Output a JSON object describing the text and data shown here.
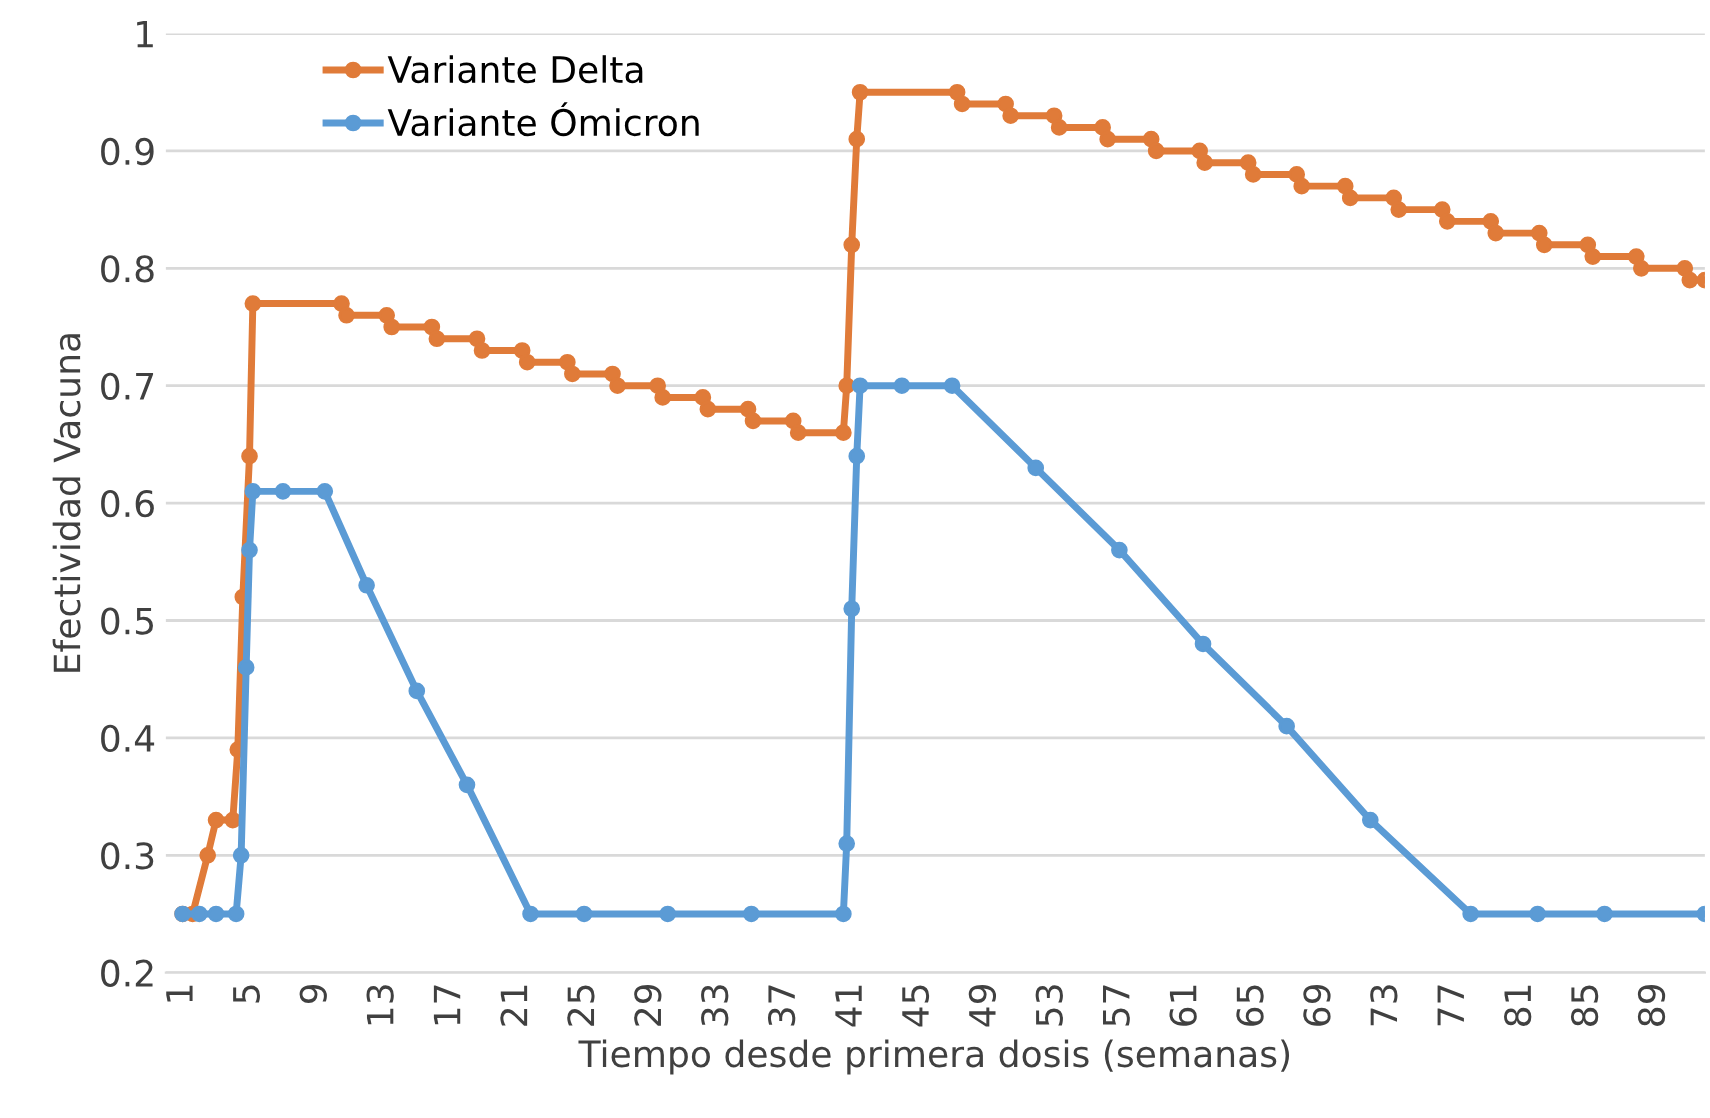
{
  "chart_data": {
    "type": "line",
    "xlabel": "Tiempo desde primera dosis (semanas)",
    "ylabel": "Efectividad Vacuna",
    "xlim": [
      0,
      92
    ],
    "xticks": [
      1,
      5,
      9,
      13,
      17,
      21,
      25,
      29,
      33,
      37,
      41,
      45,
      49,
      53,
      57,
      61,
      65,
      69,
      73,
      77,
      81,
      85,
      89
    ],
    "ylim": [
      0.2,
      1
    ],
    "yticks": [
      0.2,
      0.3,
      0.4,
      0.5,
      0.6,
      0.7,
      0.8,
      0.9,
      {
        "value": 1,
        "label": "1"
      }
    ],
    "grid": "y",
    "legend": "top left",
    "marker": "circle",
    "line_style": "solid",
    "series": [
      {
        "name": "Variante Delta",
        "color": "#e07b39",
        "x": [
          1,
          1.6,
          2.5,
          3,
          4,
          4.3,
          4.6,
          5.0,
          5.2,
          10.5,
          10.8,
          13.2,
          13.5,
          15.9,
          16.2,
          18.6,
          18.9,
          21.3,
          21.6,
          24.0,
          24.3,
          26.7,
          27.0,
          29.4,
          29.7,
          32.1,
          32.4,
          34.8,
          35.1,
          37.5,
          37.8,
          40.5,
          40.7,
          41.0,
          41.3,
          41.5,
          47.3,
          47.6,
          50.2,
          50.5,
          53.1,
          53.4,
          56.0,
          56.3,
          58.9,
          59.2,
          61.8,
          62.1,
          64.7,
          65.0,
          67.6,
          67.9,
          70.5,
          70.8,
          73.4,
          73.7,
          76.3,
          76.6,
          79.2,
          79.5,
          82.1,
          82.4,
          85.0,
          85.3,
          87.9,
          88.2,
          90.8,
          91.1,
          92
        ],
        "values": [
          0.25,
          0.25,
          0.3,
          0.33,
          0.33,
          0.39,
          0.52,
          0.64,
          0.77,
          0.77,
          0.76,
          0.76,
          0.75,
          0.75,
          0.74,
          0.74,
          0.73,
          0.73,
          0.72,
          0.72,
          0.71,
          0.71,
          0.7,
          0.7,
          0.69,
          0.69,
          0.68,
          0.68,
          0.67,
          0.67,
          0.66,
          0.66,
          0.7,
          0.82,
          0.91,
          0.95,
          0.95,
          0.94,
          0.94,
          0.93,
          0.93,
          0.92,
          0.92,
          0.91,
          0.91,
          0.9,
          0.9,
          0.89,
          0.89,
          0.88,
          0.88,
          0.87,
          0.87,
          0.86,
          0.86,
          0.85,
          0.85,
          0.84,
          0.84,
          0.83,
          0.83,
          0.82,
          0.82,
          0.81,
          0.81,
          0.8,
          0.8,
          0.79,
          0.79
        ]
      },
      {
        "name": "Variante Ómicron",
        "color": "#5b9bd5",
        "x": [
          1,
          2,
          3,
          4.2,
          4.5,
          4.8,
          5.0,
          5.2,
          7,
          9.5,
          12,
          15,
          18,
          21.8,
          25,
          30,
          35,
          40.5,
          40.7,
          41.0,
          41.3,
          41.5,
          44,
          47,
          52,
          57,
          62,
          67,
          72,
          78,
          82,
          86,
          92
        ],
        "values": [
          0.25,
          0.25,
          0.25,
          0.25,
          0.3,
          0.46,
          0.56,
          0.61,
          0.61,
          0.61,
          0.53,
          0.44,
          0.36,
          0.25,
          0.25,
          0.25,
          0.25,
          0.25,
          0.31,
          0.51,
          0.64,
          0.7,
          0.7,
          0.7,
          0.63,
          0.56,
          0.48,
          0.41,
          0.33,
          0.25,
          0.25,
          0.25,
          0.25
        ]
      }
    ]
  }
}
